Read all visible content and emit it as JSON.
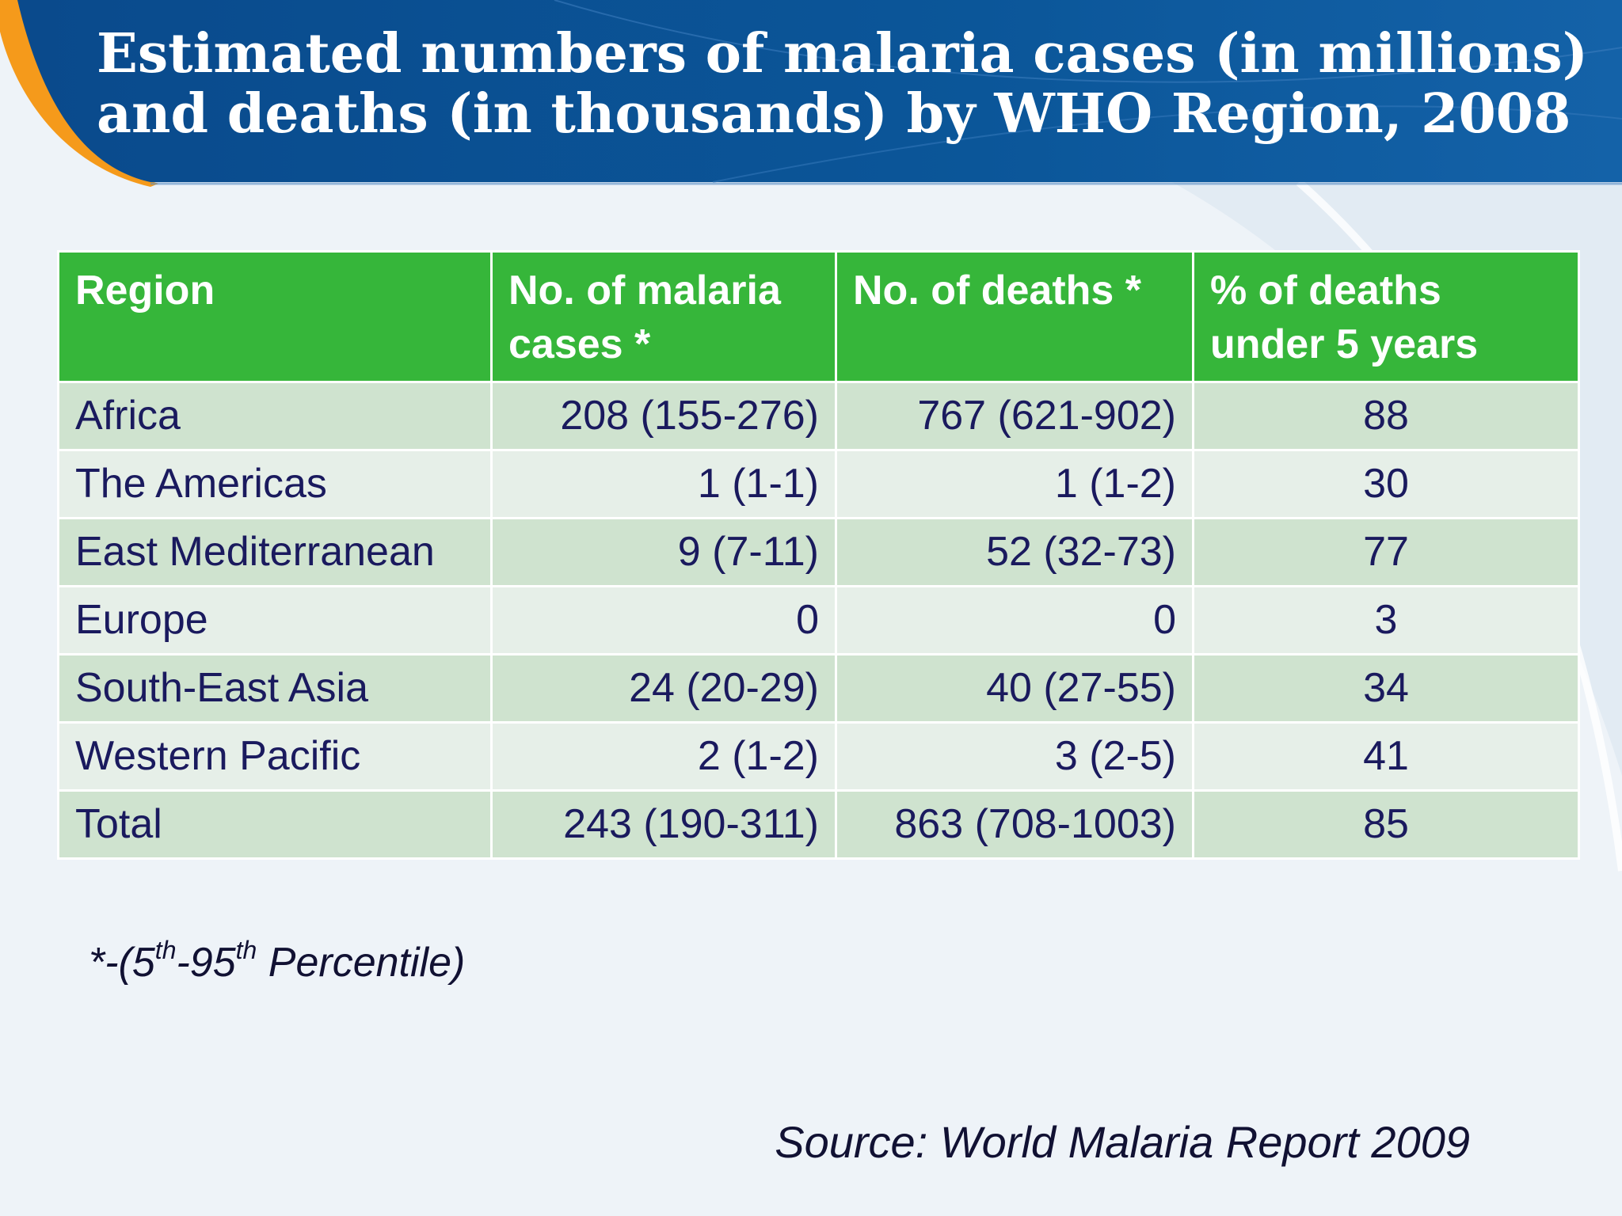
{
  "title": {
    "line1": "Estimated numbers of malaria cases (in millions)",
    "line2": "and deaths (in thousands) by WHO Region, 2008"
  },
  "table": {
    "headers": [
      "Region",
      "No. of  malaria cases *",
      "No. of deaths *",
      "% of deaths under 5 years"
    ],
    "rows": [
      [
        "Africa",
        "208 (155-276)",
        "767 (621-902)",
        "88"
      ],
      [
        "The Americas",
        "1 (1-1)",
        "1 (1-2)",
        "30"
      ],
      [
        "East Mediterranean",
        "9 (7-11)",
        "52 (32-73)",
        "77"
      ],
      [
        "Europe",
        "0",
        "0",
        "3"
      ],
      [
        "South-East Asia",
        "24 (20-29)",
        "40 (27-55)",
        "34"
      ],
      [
        "Western Pacific",
        "2 (1-2)",
        "3 (2-5)",
        "41"
      ],
      [
        "Total",
        "243 (190-311)",
        "863 (708-1003)",
        "85"
      ]
    ]
  },
  "footnote": {
    "prefix": "*-(5",
    "sup1": "th",
    "mid": "-95",
    "sup2": "th",
    "suffix": " Percentile)"
  },
  "source": "Source: World Malaria Report 2009",
  "colors": {
    "header_band": "#0b4f93",
    "accent_orange": "#f59a1b",
    "table_header": "#36b63a",
    "row_dark": "#cfe3cf",
    "row_light": "#e6efe8",
    "text_navy": "#1a1a5e"
  }
}
